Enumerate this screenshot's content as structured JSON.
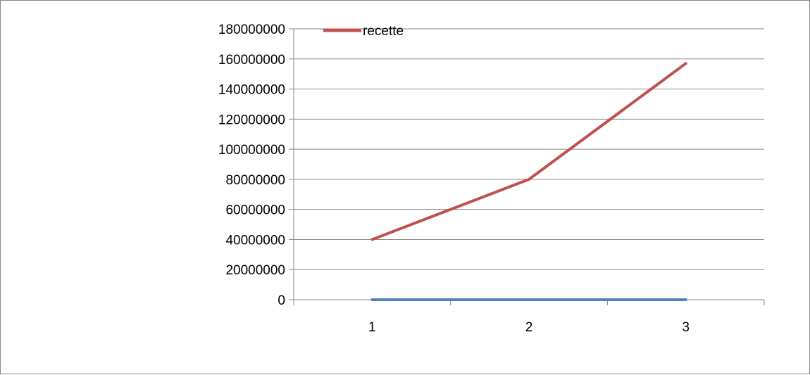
{
  "chart_data": {
    "type": "line",
    "title": "",
    "xlabel": "",
    "ylabel": "",
    "categories": [
      "1",
      "2",
      "3"
    ],
    "ylim": [
      0,
      180000000
    ],
    "ytick_labels": [
      "0",
      "20000000",
      "40000000",
      "60000000",
      "80000000",
      "100000000",
      "120000000",
      "140000000",
      "160000000",
      "180000000"
    ],
    "grid": true,
    "legend_position": "top-left",
    "series": [
      {
        "name": "",
        "values": [
          0,
          0,
          0
        ],
        "color": "#4F81BD"
      },
      {
        "name": "recette",
        "values": [
          40000000,
          80000000,
          157000000
        ],
        "color": "#C0504D"
      }
    ]
  }
}
